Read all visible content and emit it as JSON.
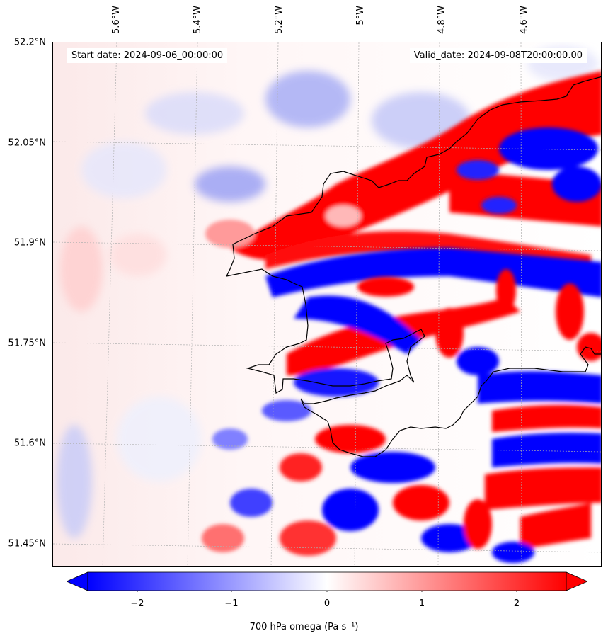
{
  "header": {
    "start_date": "Start date: 2024-09-06_00:00:00",
    "valid_date": "Valid_date: 2024-09-08T20:00:00.00"
  },
  "axes": {
    "lat_ticks": [
      "52.2°N",
      "52.05°N",
      "51.9°N",
      "51.75°N",
      "51.6°N",
      "51.45°N"
    ],
    "lon_ticks": [
      "5.6°W",
      "5.4°W",
      "5.2°W",
      "5°W",
      "4.8°W",
      "4.6°W"
    ]
  },
  "colorbar": {
    "ticks": [
      "−2",
      "−1",
      "0",
      "1",
      "2"
    ],
    "label": "700 hPa omega (Pa s⁻¹)",
    "range": [
      -2.5,
      2.5
    ],
    "colors": {
      "low": "#0000ff",
      "mid": "#ffffff",
      "high": "#ff0000"
    },
    "extend": "both"
  },
  "colors": {
    "coastline": "#000000",
    "gridline": "#b0b0b0"
  }
}
